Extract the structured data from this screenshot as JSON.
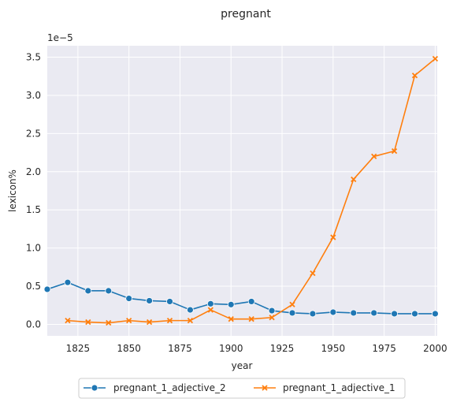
{
  "chart_data": {
    "type": "line",
    "title": "pregnant",
    "xlabel": "year",
    "ylabel": "lexicon%",
    "y_offset_label": "1e−5",
    "xlim": [
      1810,
      2001
    ],
    "ylim": [
      -0.15,
      3.65
    ],
    "x_ticks": [
      1825,
      1850,
      1875,
      1900,
      1925,
      1950,
      1975,
      2000
    ],
    "y_ticks": [
      0.0,
      0.5,
      1.0,
      1.5,
      2.0,
      2.5,
      3.0,
      3.5
    ],
    "x_tick_labels": [
      "1825",
      "1850",
      "1875",
      "1900",
      "1925",
      "1950",
      "1975",
      "2000"
    ],
    "y_tick_labels": [
      "0.0",
      "0.5",
      "1.0",
      "1.5",
      "2.0",
      "2.5",
      "3.0",
      "3.5"
    ],
    "grid": true,
    "legend_position": "bottom-center",
    "series": [
      {
        "name": "pregnant_1_adjective_2",
        "color": "#1f77b4",
        "marker": "circle",
        "x": [
          1810,
          1820,
          1830,
          1840,
          1850,
          1860,
          1870,
          1880,
          1890,
          1900,
          1910,
          1920,
          1930,
          1940,
          1950,
          1960,
          1970,
          1980,
          1990,
          2000
        ],
        "y": [
          0.46,
          0.55,
          0.44,
          0.44,
          0.34,
          0.31,
          0.3,
          0.19,
          0.27,
          0.26,
          0.3,
          0.18,
          0.15,
          0.14,
          0.16,
          0.15,
          0.15,
          0.14,
          0.14,
          0.14
        ]
      },
      {
        "name": "pregnant_1_adjective_1",
        "color": "#ff7f0e",
        "marker": "x",
        "x": [
          1820,
          1830,
          1840,
          1850,
          1860,
          1870,
          1880,
          1890,
          1900,
          1910,
          1920,
          1930,
          1940,
          1950,
          1960,
          1970,
          1980,
          1990,
          2000
        ],
        "y": [
          0.05,
          0.03,
          0.02,
          0.05,
          0.03,
          0.05,
          0.05,
          0.19,
          0.07,
          0.07,
          0.09,
          0.26,
          0.67,
          1.14,
          1.9,
          2.2,
          2.27,
          3.26,
          3.48
        ]
      }
    ]
  }
}
